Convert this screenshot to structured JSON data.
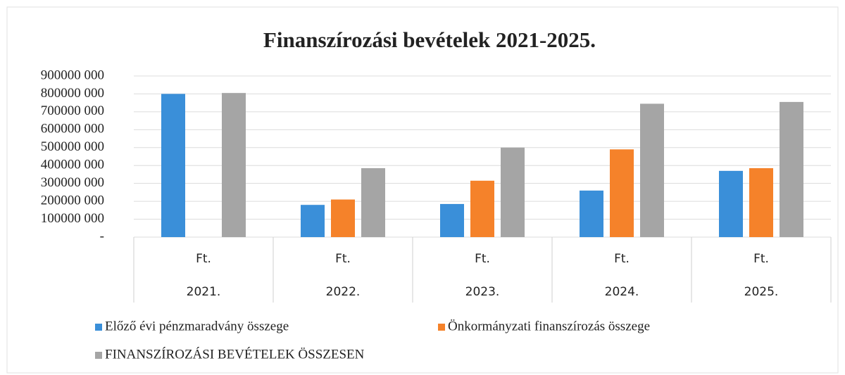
{
  "chart_data": {
    "type": "bar",
    "title": "Finanszírozási  bevételek 2021-2025.",
    "categories": [
      "2021.",
      "2022.",
      "2023.",
      "2024.",
      "2025."
    ],
    "category_units": [
      "Ft.",
      "Ft.",
      "Ft.",
      "Ft.",
      "Ft."
    ],
    "series": [
      {
        "name": "Előző évi pénzmaradvány összege",
        "color": "#3a8fd9",
        "values": [
          800000000,
          180000000,
          185000000,
          260000000,
          370000000
        ]
      },
      {
        "name": "Önkormányzati finanszírozás összege",
        "color": "#f5822a",
        "values": [
          null,
          210000000,
          315000000,
          490000000,
          385000000
        ]
      },
      {
        "name": "FINANSZÍROZÁSI BEVÉTELEK ÖSSZESEN",
        "color": "#a5a5a5",
        "values": [
          805000000,
          385000000,
          500000000,
          745000000,
          755000000
        ]
      }
    ],
    "ylim": [
      0,
      900000000
    ],
    "yticks": [
      {
        "value": 0,
        "label": "-"
      },
      {
        "value": 100000000,
        "label": "100000 000"
      },
      {
        "value": 200000000,
        "label": "200000 000"
      },
      {
        "value": 300000000,
        "label": "300000 000"
      },
      {
        "value": 400000000,
        "label": "400000 000"
      },
      {
        "value": 500000000,
        "label": "500000 000"
      },
      {
        "value": 600000000,
        "label": "600000 000"
      },
      {
        "value": 700000000,
        "label": "700000 000"
      },
      {
        "value": 800000000,
        "label": "800000 000"
      },
      {
        "value": 900000000,
        "label": "900000 000"
      }
    ],
    "grid": true,
    "legend": "bottom"
  }
}
